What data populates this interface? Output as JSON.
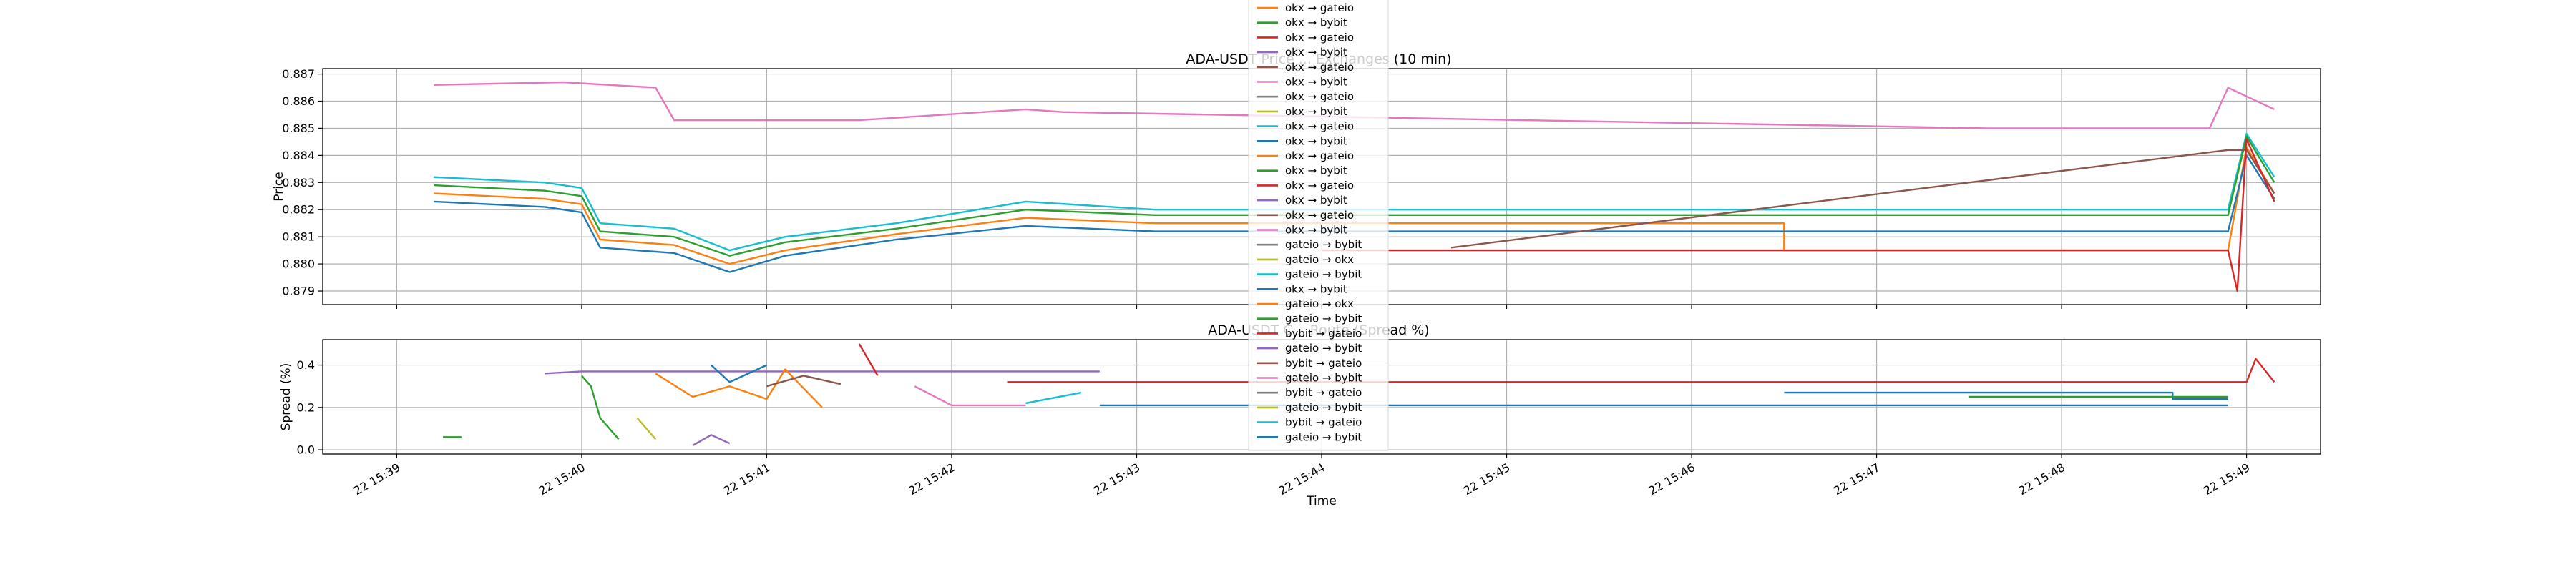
{
  "chart_data": [
    {
      "type": "line",
      "title": "ADA-USDT Price ... Exchanges (10 min)",
      "xlabel": "",
      "ylabel": "Price",
      "ylim": [
        0.8785,
        0.8872
      ],
      "yticks": [
        "0.879",
        "0.880",
        "0.881",
        "0.882",
        "0.883",
        "0.884",
        "0.885",
        "0.886",
        "0.887"
      ],
      "xlim_minutes": [
        -0.4,
        10.4
      ],
      "x_unit": "minutes after 15:39",
      "grid": true,
      "series": [
        {
          "name": "",
          "color": "#e377c2",
          "points": [
            [
              0.2,
              0.8866
            ],
            [
              0.9,
              0.8867
            ],
            [
              1.4,
              0.8865
            ],
            [
              1.5,
              0.8853
            ],
            [
              2.5,
              0.8853
            ],
            [
              3.4,
              0.8857
            ],
            [
              3.6,
              0.8856
            ],
            [
              8.6,
              0.885
            ],
            [
              9.8,
              0.885
            ],
            [
              9.9,
              0.8865
            ],
            [
              10.15,
              0.8857
            ]
          ]
        },
        {
          "name": "",
          "color": "#17becf",
          "points": [
            [
              0.2,
              0.8832
            ],
            [
              0.8,
              0.883
            ],
            [
              1.0,
              0.8828
            ],
            [
              1.1,
              0.8815
            ],
            [
              1.5,
              0.8813
            ],
            [
              1.8,
              0.8805
            ],
            [
              2.1,
              0.881
            ],
            [
              2.7,
              0.8815
            ],
            [
              3.4,
              0.8823
            ],
            [
              4.1,
              0.882
            ],
            [
              9.9,
              0.882
            ],
            [
              10.0,
              0.8848
            ],
            [
              10.15,
              0.8832
            ]
          ]
        },
        {
          "name": "",
          "color": "#2ca02c",
          "points": [
            [
              0.2,
              0.8829
            ],
            [
              0.8,
              0.8827
            ],
            [
              1.0,
              0.8825
            ],
            [
              1.1,
              0.8812
            ],
            [
              1.5,
              0.881
            ],
            [
              1.8,
              0.8803
            ],
            [
              2.1,
              0.8808
            ],
            [
              2.7,
              0.8813
            ],
            [
              3.4,
              0.882
            ],
            [
              4.1,
              0.8818
            ],
            [
              9.9,
              0.8818
            ],
            [
              10.0,
              0.8847
            ],
            [
              10.15,
              0.883
            ]
          ]
        },
        {
          "name": "",
          "color": "#ff7f0e",
          "points": [
            [
              0.2,
              0.8826
            ],
            [
              0.8,
              0.8824
            ],
            [
              1.0,
              0.8822
            ],
            [
              1.1,
              0.8809
            ],
            [
              1.5,
              0.8807
            ],
            [
              1.8,
              0.88
            ],
            [
              2.1,
              0.8805
            ],
            [
              2.7,
              0.8811
            ],
            [
              3.4,
              0.8817
            ],
            [
              4.1,
              0.8815
            ],
            [
              7.5,
              0.8815
            ],
            [
              7.5,
              0.8805
            ],
            [
              9.9,
              0.8805
            ],
            [
              10.0,
              0.8843
            ],
            [
              10.15,
              0.8826
            ]
          ]
        },
        {
          "name": "",
          "color": "#1f77b4",
          "points": [
            [
              0.2,
              0.8823
            ],
            [
              0.8,
              0.8821
            ],
            [
              1.0,
              0.8819
            ],
            [
              1.1,
              0.8806
            ],
            [
              1.5,
              0.8804
            ],
            [
              1.8,
              0.8797
            ],
            [
              2.1,
              0.8803
            ],
            [
              2.7,
              0.8809
            ],
            [
              3.4,
              0.8814
            ],
            [
              4.1,
              0.8812
            ],
            [
              9.9,
              0.8812
            ],
            [
              10.0,
              0.884
            ],
            [
              10.15,
              0.8824
            ]
          ]
        },
        {
          "name": "",
          "color": "#8c564b",
          "points": [
            [
              5.7,
              0.8806
            ],
            [
              9.9,
              0.8842
            ],
            [
              10.0,
              0.8842
            ],
            [
              10.15,
              0.8826
            ]
          ]
        },
        {
          "name": "",
          "color": "#d62728",
          "points": [
            [
              5.0,
              0.8805
            ],
            [
              9.9,
              0.8805
            ],
            [
              9.95,
              0.879
            ],
            [
              10.0,
              0.8846
            ],
            [
              10.15,
              0.8823
            ]
          ]
        }
      ]
    },
    {
      "type": "line",
      "title": "ADA-USDT C... Route (Spread %)",
      "xlabel": "Time",
      "ylabel": "Spread (%)",
      "ylim": [
        -0.02,
        0.52
      ],
      "yticks": [
        "0.0",
        "0.2",
        "0.4"
      ],
      "xticks": [
        "22 15:39",
        "22 15:40",
        "22 15:41",
        "22 15:42",
        "22 15:43",
        "22 15:44",
        "22 15:45",
        "22 15:46",
        "22 15:47",
        "22 15:48",
        "22 15:49"
      ],
      "grid": true,
      "series": [
        {
          "name": "",
          "color": "#9467bd",
          "points": [
            [
              0.8,
              0.36
            ],
            [
              1.0,
              0.37
            ],
            [
              3.8,
              0.37
            ]
          ]
        },
        {
          "name": "",
          "color": "#d62728",
          "points": [
            [
              3.3,
              0.32
            ],
            [
              10.0,
              0.32
            ],
            [
              10.05,
              0.43
            ],
            [
              10.15,
              0.32
            ]
          ]
        },
        {
          "name": "",
          "color": "#1f77b4",
          "points": [
            [
              3.8,
              0.21
            ],
            [
              9.9,
              0.21
            ]
          ]
        },
        {
          "name": "",
          "color": "#1f77b4",
          "points": [
            [
              7.5,
              0.27
            ],
            [
              9.6,
              0.27
            ],
            [
              9.6,
              0.24
            ],
            [
              9.9,
              0.24
            ]
          ]
        },
        {
          "name": "",
          "color": "#2ca02c",
          "points": [
            [
              8.5,
              0.25
            ],
            [
              9.9,
              0.25
            ]
          ]
        },
        {
          "name": "",
          "color": "#e377c2",
          "points": [
            [
              2.8,
              0.3
            ],
            [
              3.0,
              0.21
            ],
            [
              3.4,
              0.21
            ]
          ]
        },
        {
          "name": "",
          "color": "#17becf",
          "points": [
            [
              3.4,
              0.22
            ],
            [
              3.7,
              0.27
            ]
          ]
        },
        {
          "name": "",
          "color": "#2ca02c",
          "points": [
            [
              0.25,
              0.06
            ],
            [
              0.35,
              0.06
            ]
          ]
        },
        {
          "name": "",
          "color": "#ff7f0e",
          "points": [
            [
              1.4,
              0.36
            ],
            [
              1.6,
              0.25
            ],
            [
              1.8,
              0.3
            ],
            [
              2.0,
              0.24
            ],
            [
              2.1,
              0.38
            ],
            [
              2.3,
              0.2
            ]
          ]
        },
        {
          "name": "",
          "color": "#8c564b",
          "points": [
            [
              2.0,
              0.3
            ],
            [
              2.2,
              0.35
            ],
            [
              2.4,
              0.31
            ]
          ]
        },
        {
          "name": "",
          "color": "#2ca02c",
          "points": [
            [
              1.0,
              0.35
            ],
            [
              1.05,
              0.3
            ],
            [
              1.1,
              0.15
            ],
            [
              1.2,
              0.05
            ]
          ]
        },
        {
          "name": "",
          "color": "#9467bd",
          "points": [
            [
              1.6,
              0.02
            ],
            [
              1.7,
              0.07
            ],
            [
              1.8,
              0.03
            ]
          ]
        },
        {
          "name": "",
          "color": "#1f77b4",
          "points": [
            [
              1.7,
              0.4
            ],
            [
              1.8,
              0.32
            ],
            [
              2.0,
              0.4
            ]
          ]
        },
        {
          "name": "",
          "color": "#bcbd22",
          "points": [
            [
              1.3,
              0.15
            ],
            [
              1.4,
              0.05
            ]
          ]
        },
        {
          "name": "",
          "color": "#d62728",
          "points": [
            [
              2.5,
              0.5
            ],
            [
              2.6,
              0.35
            ]
          ]
        }
      ]
    }
  ],
  "legend": {
    "placement": "upper center",
    "entries": [
      {
        "label": "okx → gateio",
        "color": "#ff7f0e"
      },
      {
        "label": "okx → bybit",
        "color": "#2ca02c"
      },
      {
        "label": "okx → gateio",
        "color": "#d62728"
      },
      {
        "label": "okx → bybit",
        "color": "#9467bd"
      },
      {
        "label": "okx → gateio",
        "color": "#8c564b"
      },
      {
        "label": "okx → bybit",
        "color": "#e377c2"
      },
      {
        "label": "okx → gateio",
        "color": "#7f7f7f"
      },
      {
        "label": "okx → bybit",
        "color": "#bcbd22"
      },
      {
        "label": "okx → gateio",
        "color": "#17becf"
      },
      {
        "label": "okx → bybit",
        "color": "#1f77b4"
      },
      {
        "label": "okx → gateio",
        "color": "#ff7f0e"
      },
      {
        "label": "okx → bybit",
        "color": "#2ca02c"
      },
      {
        "label": "okx → gateio",
        "color": "#d62728"
      },
      {
        "label": "okx → bybit",
        "color": "#9467bd"
      },
      {
        "label": "okx → gateio",
        "color": "#8c564b"
      },
      {
        "label": "okx → bybit",
        "color": "#e377c2"
      },
      {
        "label": "gateio → bybit",
        "color": "#7f7f7f"
      },
      {
        "label": "gateio → okx",
        "color": "#bcbd22"
      },
      {
        "label": "gateio → bybit",
        "color": "#17becf"
      },
      {
        "label": "okx → bybit",
        "color": "#1f77b4"
      },
      {
        "label": "gateio → okx",
        "color": "#ff7f0e"
      },
      {
        "label": "gateio → bybit",
        "color": "#2ca02c"
      },
      {
        "label": "bybit → gateio",
        "color": "#d62728"
      },
      {
        "label": "gateio → bybit",
        "color": "#9467bd"
      },
      {
        "label": "bybit → gateio",
        "color": "#8c564b"
      },
      {
        "label": "gateio → bybit",
        "color": "#e377c2"
      },
      {
        "label": "bybit → gateio",
        "color": "#7f7f7f"
      },
      {
        "label": "gateio → bybit",
        "color": "#bcbd22"
      },
      {
        "label": "bybit → gateio",
        "color": "#17becf"
      },
      {
        "label": "gateio → bybit",
        "color": "#1f77b4"
      }
    ]
  }
}
